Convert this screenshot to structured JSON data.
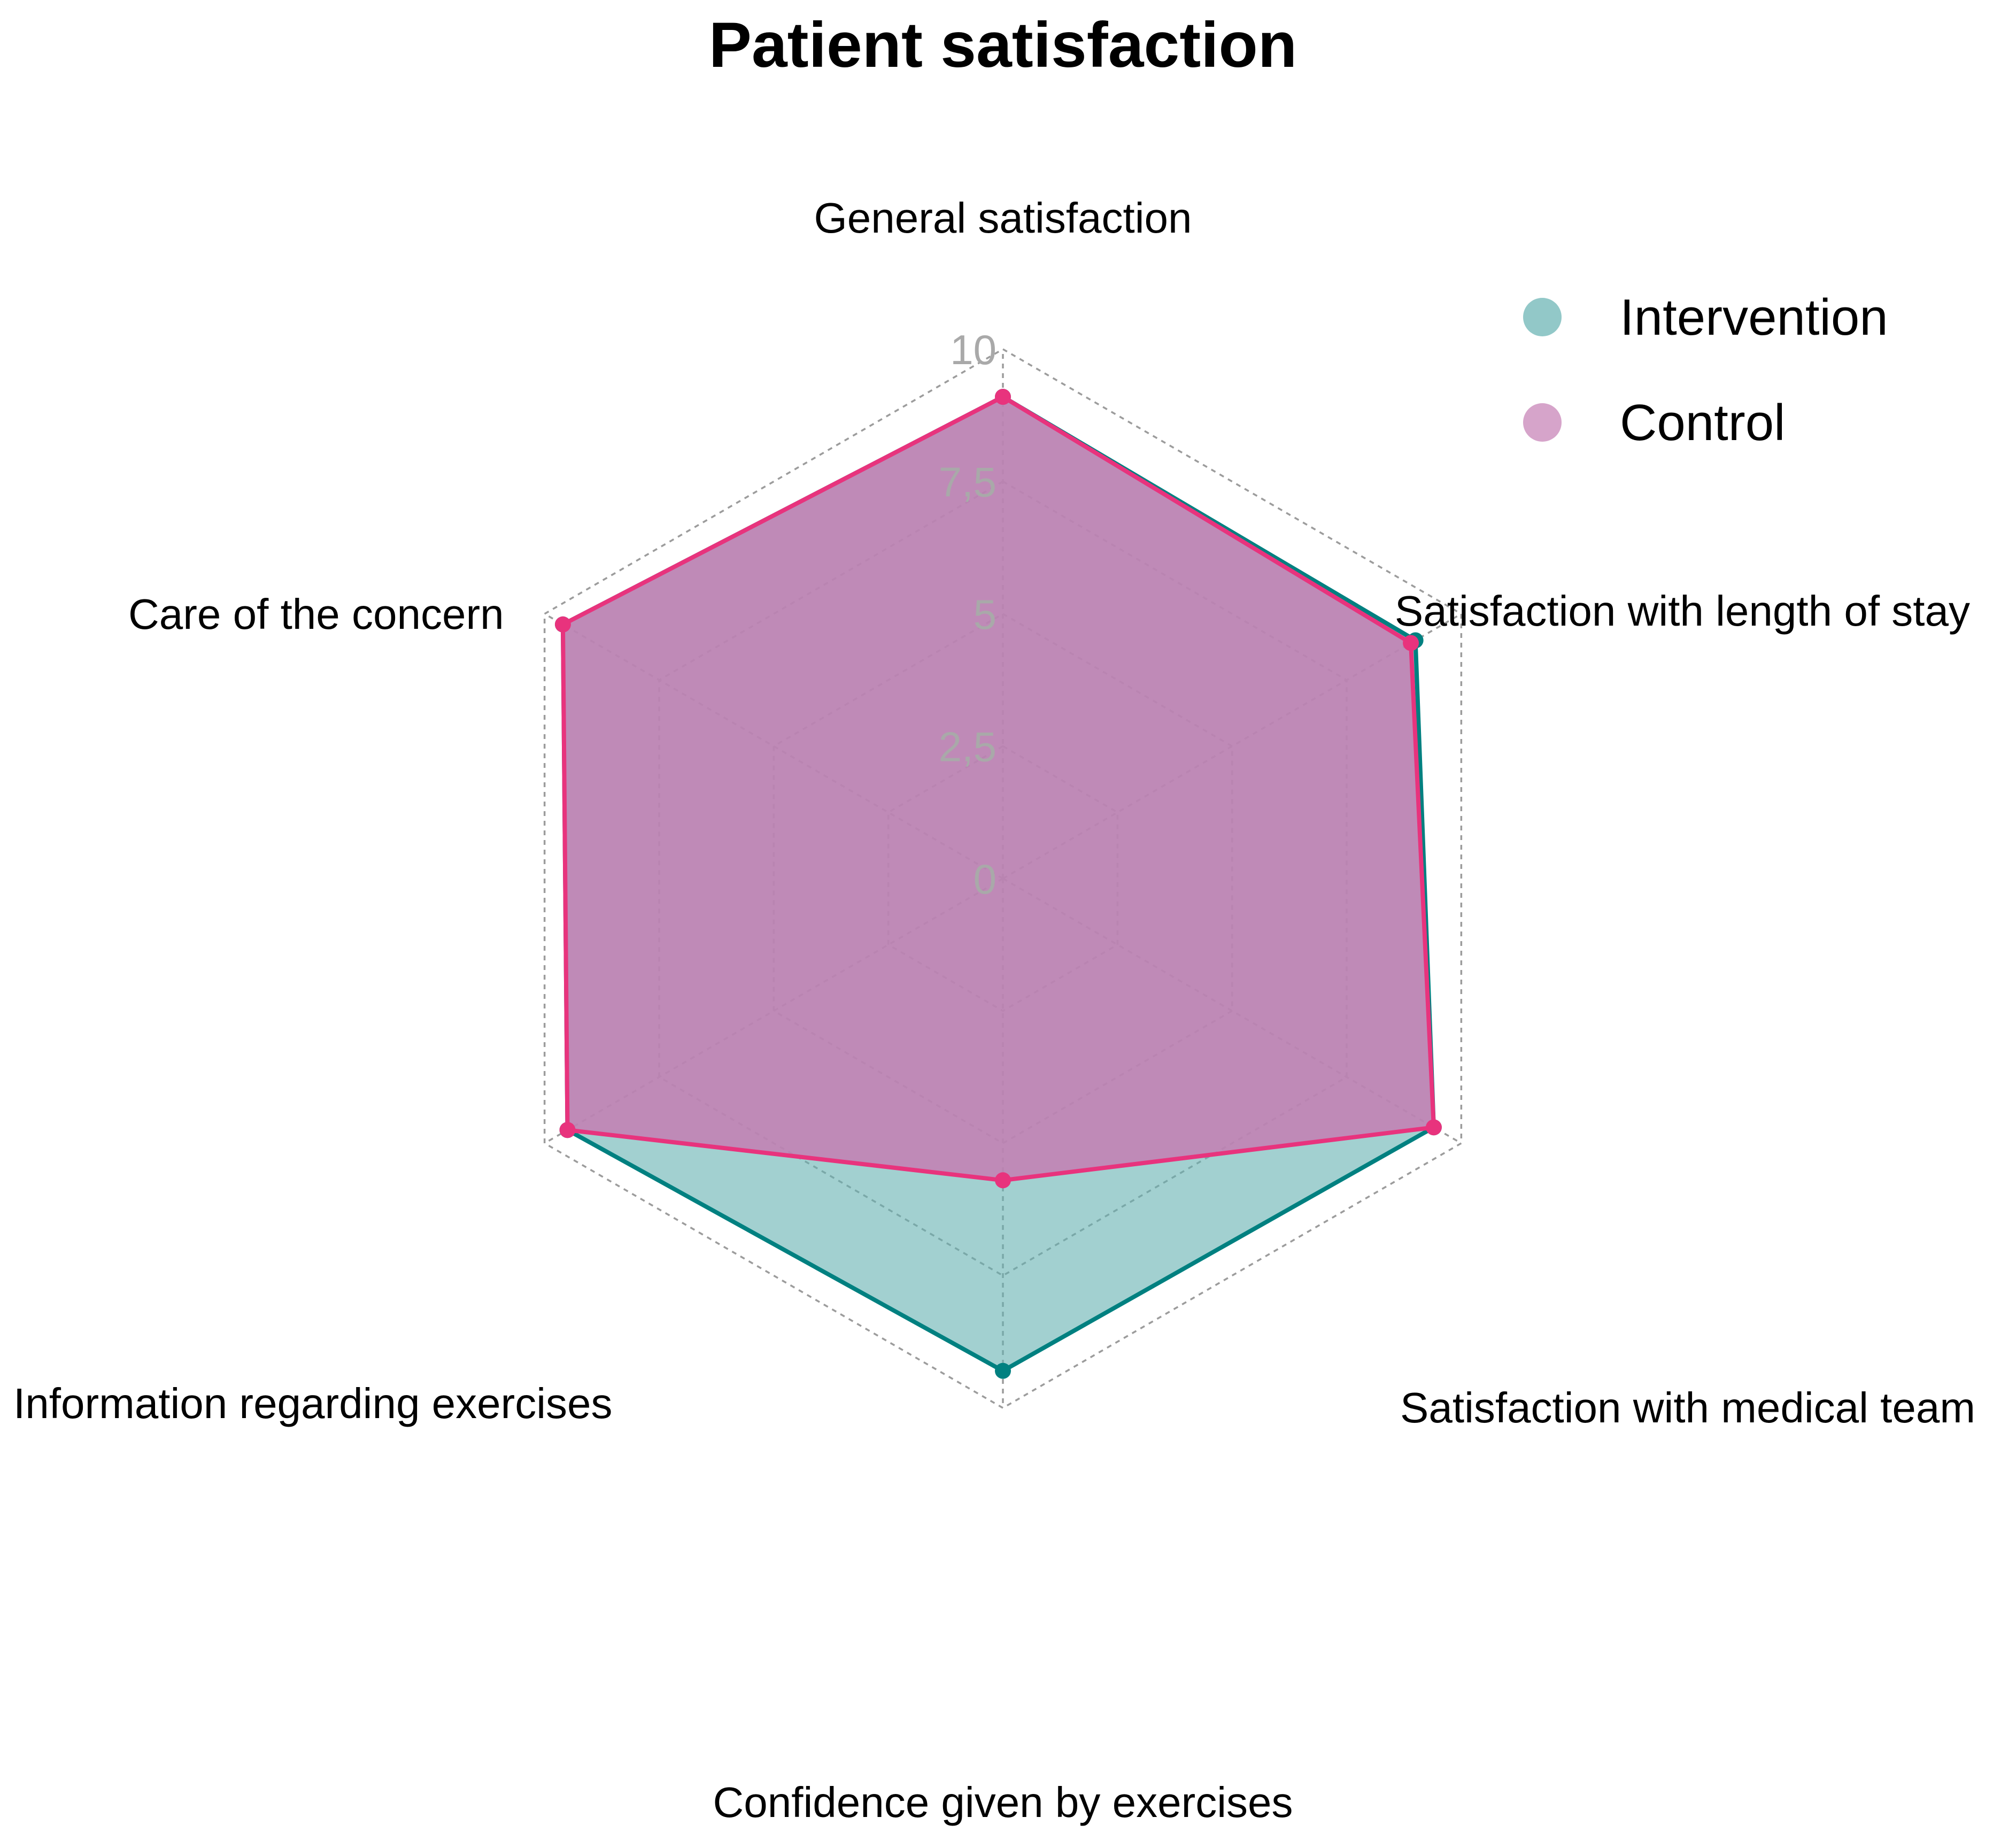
{
  "chart_data": {
    "type": "radar",
    "title": "Patient satisfaction",
    "axes": [
      "General satisfaction",
      "Satisfaction with length of stay",
      "Satisfaction with medical team",
      "Confidence given by exercises",
      "Information regarding exercises",
      "Care of the concern"
    ],
    "rlim": [
      0,
      10
    ],
    "ticks": [
      "0",
      "2,5",
      "5",
      "7,5",
      "10"
    ],
    "tick_values": [
      0,
      2.5,
      5,
      7.5,
      10
    ],
    "grid": true,
    "series": [
      {
        "name": "Intervention",
        "color": "#008080",
        "fill": "#64b1b1",
        "values": [
          9.1,
          9.0,
          9.4,
          9.3,
          9.5,
          9.6
        ]
      },
      {
        "name": "Control",
        "color": "#e8337d",
        "fill": "#c47eb3",
        "values": [
          9.1,
          8.9,
          9.4,
          5.7,
          9.5,
          9.6
        ]
      }
    ],
    "legend_position": "top-right"
  }
}
